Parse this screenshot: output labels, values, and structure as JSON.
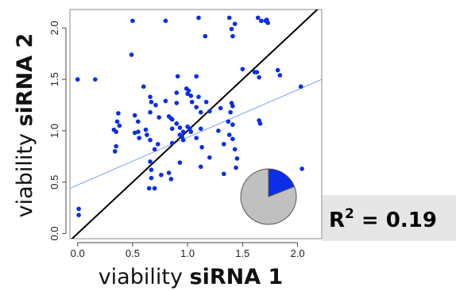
{
  "chart_data": {
    "type": "scatter",
    "xlabel": {
      "plain": "viability ",
      "bold": "siRNA 1"
    },
    "ylabel": {
      "plain": "viability ",
      "bold": "siRNA 2"
    },
    "xlim": [
      -0.07,
      2.22
    ],
    "ylim": [
      -0.05,
      2.18
    ],
    "x_ticks": [
      0.0,
      0.5,
      1.0,
      1.5,
      2.0
    ],
    "x_tick_labels": [
      "0.0",
      "0.5",
      "1.0",
      "1.5",
      "2.0"
    ],
    "y_ticks": [
      0.0,
      0.5,
      1.0,
      1.5,
      2.0
    ],
    "y_tick_labels": [
      "0.0",
      "0.5",
      "1.0",
      "1.5",
      "2.0"
    ],
    "grid": false,
    "point_color": "#0a2ee8",
    "points": [
      [
        0.0,
        1.5
      ],
      [
        0.16,
        1.5
      ],
      [
        0.01,
        0.24
      ],
      [
        0.01,
        0.18
      ],
      [
        0.35,
        0.99
      ],
      [
        0.36,
        1.09
      ],
      [
        0.37,
        1.17
      ],
      [
        0.35,
        0.85
      ],
      [
        0.34,
        0.8
      ],
      [
        0.38,
        1.05
      ],
      [
        0.33,
        1.01
      ],
      [
        0.5,
        2.07
      ],
      [
        0.49,
        1.74
      ],
      [
        0.52,
        1.15
      ],
      [
        0.55,
        1.09
      ],
      [
        0.55,
        0.99
      ],
      [
        0.52,
        0.98
      ],
      [
        0.56,
        0.93
      ],
      [
        0.6,
        1.43
      ],
      [
        0.62,
        1.01
      ],
      [
        0.63,
        0.96
      ],
      [
        0.66,
        0.91
      ],
      [
        0.66,
        1.33
      ],
      [
        0.67,
        1.28
      ],
      [
        0.66,
        1.18
      ],
      [
        0.71,
        1.25
      ],
      [
        0.74,
        1.13
      ],
      [
        0.73,
        0.87
      ],
      [
        0.7,
        0.82
      ],
      [
        0.66,
        0.7
      ],
      [
        0.67,
        0.62
      ],
      [
        0.67,
        0.54
      ],
      [
        0.65,
        0.44
      ],
      [
        0.7,
        0.44
      ],
      [
        0.76,
        0.57
      ],
      [
        0.8,
        2.07
      ],
      [
        0.8,
        1.29
      ],
      [
        0.83,
        1.14
      ],
      [
        0.85,
        1.12
      ],
      [
        0.86,
        1.11
      ],
      [
        0.86,
        1.02
      ],
      [
        0.9,
        1.07
      ],
      [
        0.9,
        1.27
      ],
      [
        0.9,
        1.37
      ],
      [
        0.91,
        1.53
      ],
      [
        0.83,
        0.59
      ],
      [
        0.85,
        0.53
      ],
      [
        0.86,
        0.88
      ],
      [
        0.93,
        0.96
      ],
      [
        0.93,
        1.03
      ],
      [
        0.93,
        0.69
      ],
      [
        0.95,
        0.94
      ],
      [
        0.96,
        0.99
      ],
      [
        0.96,
        0.91
      ],
      [
        0.99,
        1.41
      ],
      [
        1.0,
        1.36
      ],
      [
        1.01,
        1.39
      ],
      [
        1.03,
        1.34
      ],
      [
        1.04,
        1.28
      ],
      [
        1.0,
        1.04
      ],
      [
        1.02,
        1.02
      ],
      [
        1.03,
        0.99
      ],
      [
        1.08,
        1.53
      ],
      [
        1.08,
        1.23
      ],
      [
        1.08,
        0.93
      ],
      [
        1.1,
        1.33
      ],
      [
        1.1,
        2.1
      ],
      [
        1.16,
        1.92
      ],
      [
        1.17,
        1.28
      ],
      [
        1.12,
        1.18
      ],
      [
        1.12,
        1.02
      ],
      [
        1.13,
        0.84
      ],
      [
        1.12,
        0.65
      ],
      [
        1.2,
        1.19
      ],
      [
        1.2,
        0.74
      ],
      [
        1.28,
        1.0
      ],
      [
        1.3,
        1.22
      ],
      [
        1.33,
        0.87
      ],
      [
        1.33,
        0.58
      ],
      [
        1.38,
        2.1
      ],
      [
        1.4,
        1.99
      ],
      [
        1.43,
        2.04
      ],
      [
        1.41,
        1.92
      ],
      [
        1.4,
        1.27
      ],
      [
        1.41,
        1.24
      ],
      [
        1.39,
        1.18
      ],
      [
        1.41,
        1.06
      ],
      [
        1.41,
        0.92
      ],
      [
        1.43,
        0.82
      ],
      [
        1.45,
        0.73
      ],
      [
        1.44,
        0.64
      ],
      [
        1.38,
        0.96
      ],
      [
        1.37,
        1.09
      ],
      [
        1.5,
        1.6
      ],
      [
        1.61,
        1.57
      ],
      [
        1.63,
        1.57
      ],
      [
        1.65,
        1.52
      ],
      [
        1.65,
        1.1
      ],
      [
        1.66,
        1.07
      ],
      [
        1.64,
        2.1
      ],
      [
        1.67,
        2.07
      ],
      [
        1.71,
        2.07
      ],
      [
        1.73,
        2.05
      ],
      [
        1.72,
        2.08
      ],
      [
        1.82,
        1.59
      ],
      [
        1.84,
        1.54
      ],
      [
        2.03,
        1.43
      ],
      [
        2.04,
        0.63
      ]
    ],
    "identity_line": {
      "from": [
        -0.07,
        -0.07
      ],
      "to": [
        2.22,
        2.22
      ],
      "color": "#000000"
    },
    "fit_line": {
      "from": [
        -0.07,
        0.44
      ],
      "to": [
        2.22,
        1.5
      ],
      "color": "#7f9ff0"
    },
    "inset_pie": {
      "slices": [
        {
          "value": 0.19,
          "color": "#0a2ee8"
        },
        {
          "value": 0.81,
          "color": "#c0c0c0"
        }
      ]
    }
  },
  "r2_box": {
    "r": "R",
    "sup": "2",
    "rest": " = 0.19",
    "text_color": "#1a3a8c",
    "background": "#e6e6e6"
  }
}
